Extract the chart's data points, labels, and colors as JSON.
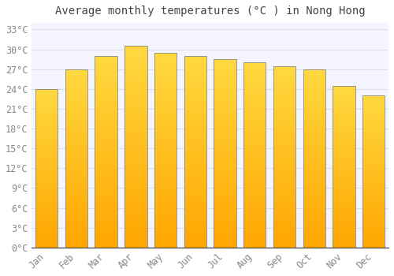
{
  "title": "Average monthly temperatures (°C ) in Nong Hong",
  "months": [
    "Jan",
    "Feb",
    "Mar",
    "Apr",
    "May",
    "Jun",
    "Jul",
    "Aug",
    "Sep",
    "Oct",
    "Nov",
    "Dec"
  ],
  "values": [
    24.0,
    27.0,
    29.0,
    30.5,
    29.5,
    29.0,
    28.5,
    28.0,
    27.5,
    27.0,
    24.5,
    23.0
  ],
  "bar_color_main": "#FFA500",
  "bar_color_light": "#FFD040",
  "bar_edge_color": "#888888",
  "background_color": "#FFFFFF",
  "plot_bg_color": "#F5F5FF",
  "grid_color": "#DDDDEE",
  "text_color": "#888888",
  "ytick_values": [
    0,
    3,
    6,
    9,
    12,
    15,
    18,
    21,
    24,
    27,
    30,
    33
  ],
  "ytick_labels": [
    "0°C",
    "3°C",
    "6°C",
    "9°C",
    "12°C",
    "15°C",
    "18°C",
    "21°C",
    "24°C",
    "27°C",
    "30°C",
    "33°C"
  ],
  "ylim": [
    0,
    34
  ],
  "title_fontsize": 10,
  "tick_fontsize": 8.5,
  "font_family": "monospace"
}
